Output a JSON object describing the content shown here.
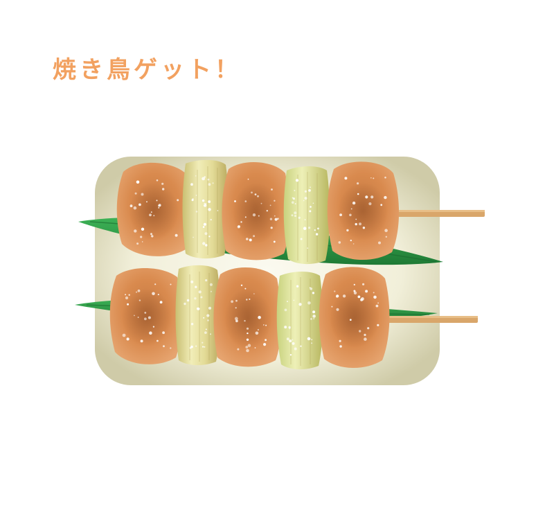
{
  "caption": {
    "text": "焼き鳥ゲット！"
  },
  "colors": {
    "caption": "#F2A160",
    "tray_edge": "#CFCBA8",
    "tray_center": "#FBFAF0",
    "leaf": "#2E9E48",
    "leaf_dark": "#1F7A35",
    "chicken": "#D98A4E",
    "chicken_dark": "#B8693A",
    "leek": "#D7CF87",
    "leek_light": "#F1EDB8",
    "stick": "#D9A66A",
    "salt": "#FFFFFF"
  },
  "illustration": {
    "skewers": [
      {
        "pieces": [
          "chicken",
          "leek",
          "chicken",
          "leek",
          "chicken"
        ]
      },
      {
        "pieces": [
          "chicken",
          "leek",
          "chicken",
          "leek",
          "chicken"
        ]
      }
    ]
  }
}
